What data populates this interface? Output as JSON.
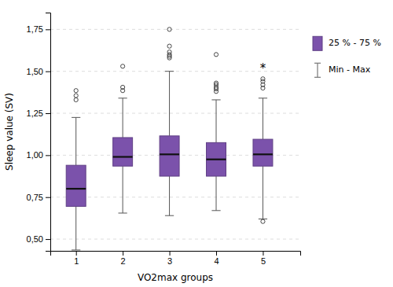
{
  "chart_data": {
    "type": "box",
    "xlabel": "VO2max groups",
    "ylabel": "Sleep value (SV)",
    "x": [
      1,
      2,
      3,
      4,
      5
    ],
    "boxes": [
      {
        "q1": 0.695,
        "median": 0.8,
        "q3": 0.94,
        "whisker_low": 0.435,
        "whisker_high": 1.225,
        "outliers": [
          1.33,
          1.355,
          1.385
        ]
      },
      {
        "q1": 0.935,
        "median": 0.99,
        "q3": 1.105,
        "whisker_low": 0.655,
        "whisker_high": 1.34,
        "outliers": [
          1.385,
          1.405,
          1.53
        ]
      },
      {
        "q1": 0.875,
        "median": 1.005,
        "q3": 1.115,
        "whisker_low": 0.64,
        "whisker_high": 1.5,
        "outliers": [
          1.58,
          1.59,
          1.6,
          1.615,
          1.65,
          1.75
        ]
      },
      {
        "q1": 0.875,
        "median": 0.975,
        "q3": 1.075,
        "whisker_low": 0.67,
        "whisker_high": 1.33,
        "outliers": [
          1.38,
          1.395,
          1.405,
          1.42,
          1.43,
          1.6
        ]
      },
      {
        "q1": 0.935,
        "median": 1.005,
        "q3": 1.095,
        "whisker_low": 0.62,
        "whisker_high": 1.34,
        "outliers": [
          1.4,
          1.42,
          1.44,
          0.605,
          1.455
        ]
      }
    ],
    "color": "#7B52AB",
    "xlim": [
      0.45,
      5.8
    ],
    "xticks": [
      1,
      2,
      3,
      4,
      5
    ],
    "ylim": [
      0.43,
      1.85
    ],
    "yticks": [
      {
        "value": 0.5,
        "label": "0,50"
      },
      {
        "value": 0.75,
        "label": "0,75"
      },
      {
        "value": 1.0,
        "label": "1,00"
      },
      {
        "value": 1.25,
        "label": "1,25"
      },
      {
        "value": 1.5,
        "label": "1,50"
      },
      {
        "value": 1.75,
        "label": "1,75"
      }
    ],
    "grid": true,
    "legend": "right",
    "legend_labels": [
      "25 % - 75 %",
      "Min - Max"
    ],
    "annotations": [
      {
        "text": "*",
        "x": 5,
        "y": 1.495
      }
    ]
  }
}
